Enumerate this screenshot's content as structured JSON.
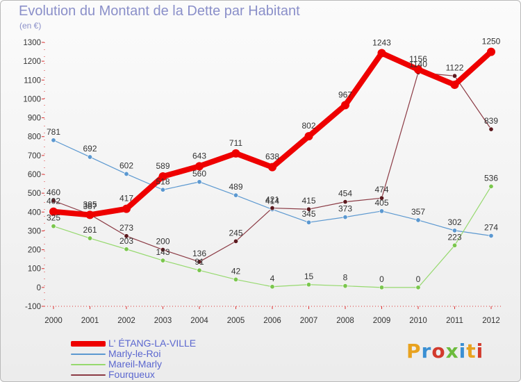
{
  "title": "Evolution du Montant de la Dette par Habitant",
  "subtitle": "(en €)",
  "logo": {
    "text": "Proxiti",
    "colors": [
      "#e8a21f",
      "#3a8fd3",
      "#d23a2c",
      "#6cbb3c",
      "#3a8fd3",
      "#e8a21f",
      "#d23a2c"
    ]
  },
  "chart_data": {
    "type": "line",
    "title": "Evolution du Montant de la Dette par Habitant",
    "ylabel": "(en €)",
    "x": [
      "2000",
      "2001",
      "2002",
      "2003",
      "2004",
      "2005",
      "2006",
      "2007",
      "2008",
      "2009",
      "2010",
      "2011",
      "2012"
    ],
    "ylim": [
      -100,
      1300
    ],
    "yticks": [
      -100,
      0,
      100,
      200,
      300,
      400,
      500,
      600,
      700,
      800,
      900,
      1000,
      1100,
      1200,
      1300
    ],
    "grid": false,
    "legend_position": "bottom-left",
    "series": [
      {
        "name": "L' ÉTANG-LA-VILLE",
        "color": "#ee0000",
        "marker_color": "#ee0000",
        "values": [
          402,
          385,
          417,
          589,
          643,
          711,
          638,
          802,
          967,
          1243,
          1156,
          1075,
          1250
        ],
        "labels": [
          "402",
          "385",
          "417",
          "589",
          "643",
          "711",
          "638",
          "802",
          "967",
          "1243",
          "1156",
          "",
          "1250"
        ]
      },
      {
        "name": "Marly-le-Roi",
        "color": "#5b98d0",
        "marker_color": "#5b98d0",
        "values": [
          781,
          692,
          602,
          518,
          560,
          489,
          414,
          345,
          373,
          405,
          357,
          302,
          274
        ],
        "labels": [
          "781",
          "692",
          "602",
          "518",
          "560",
          "489",
          "414",
          "345",
          "373",
          "405",
          "357",
          "302",
          "274"
        ]
      },
      {
        "name": "Mareil-Marly",
        "color": "#96d96e",
        "marker_color": "#7ac64d",
        "values": [
          325,
          261,
          203,
          143,
          91,
          42,
          4,
          15,
          8,
          0,
          0,
          223,
          536
        ],
        "labels": [
          "325",
          "261",
          "203",
          "143",
          "91",
          "42",
          "4",
          "15",
          "8",
          "0",
          "0",
          "223",
          "536"
        ]
      },
      {
        "name": "Fourqueux",
        "color": "#8b3a44",
        "marker_color": "#5c1a1f",
        "values": [
          460,
          387,
          273,
          200,
          136,
          245,
          421,
          415,
          454,
          474,
          1140,
          1122,
          839
        ],
        "labels": [
          "460",
          "387",
          "273",
          "200",
          "136",
          "245",
          "421",
          "415",
          "454",
          "474",
          "1140",
          "1122",
          "839"
        ]
      }
    ]
  }
}
